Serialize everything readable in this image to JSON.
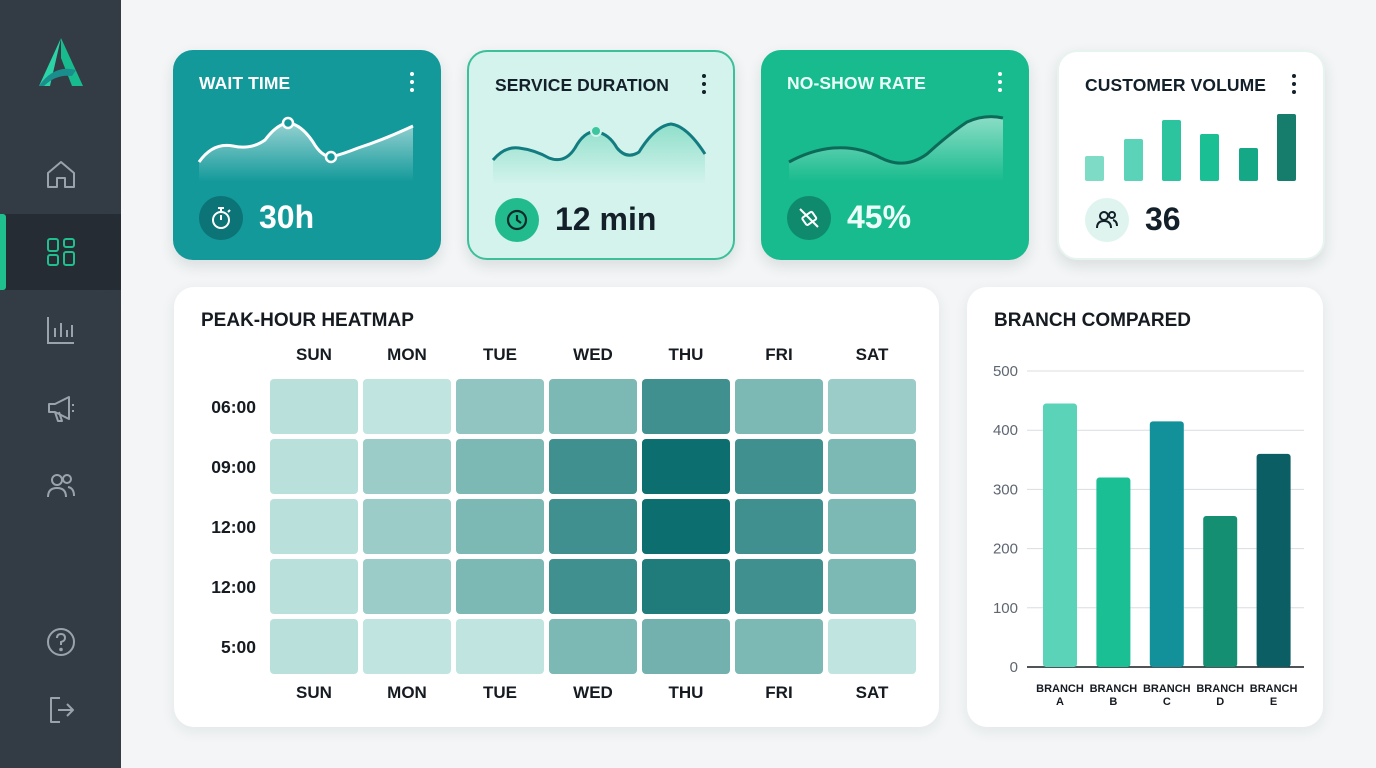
{
  "sidebar": {
    "logo_icon": "brand-a-logo",
    "nav_items": [
      {
        "icon": "home-icon",
        "active": false
      },
      {
        "icon": "dashboard-icon",
        "active": true
      },
      {
        "icon": "bar-chart-icon",
        "active": false
      },
      {
        "icon": "megaphone-icon",
        "active": false
      },
      {
        "icon": "users-icon",
        "active": false
      }
    ],
    "bottom_items": [
      {
        "icon": "help-icon"
      },
      {
        "icon": "logout-icon"
      }
    ]
  },
  "cards": [
    {
      "title": "WAIT TIME",
      "value": "30h",
      "icon": "stopwatch-icon",
      "color": "#13999a"
    },
    {
      "title": "SERVICE DURATION",
      "value": "12 min",
      "icon": "clock-icon",
      "color": "#d3f3ec"
    },
    {
      "title": "NO-SHOW RATE",
      "value": "45%",
      "icon": "no-show-icon",
      "color": "#17bb8d"
    },
    {
      "title": "CUSTOMER VOLUME",
      "value": "36",
      "icon": "users-icon",
      "color": "#ffffff"
    }
  ],
  "heatmap": {
    "title": "PEAK-HOUR HEATMAP",
    "days": [
      "SUN",
      "MON",
      "TUE",
      "WED",
      "THU",
      "FRI",
      "SAT"
    ],
    "rows": [
      "06:00",
      "09:00",
      "12:00",
      "12:00",
      "5:00"
    ],
    "levels": [
      [
        0.15,
        0.12,
        0.35,
        0.45,
        0.75,
        0.45,
        0.3
      ],
      [
        0.15,
        0.3,
        0.45,
        0.75,
        1.0,
        0.75,
        0.45
      ],
      [
        0.15,
        0.3,
        0.45,
        0.75,
        1.0,
        0.75,
        0.45
      ],
      [
        0.15,
        0.3,
        0.45,
        0.75,
        0.9,
        0.75,
        0.45
      ],
      [
        0.15,
        0.12,
        0.12,
        0.45,
        0.5,
        0.45,
        0.12
      ]
    ],
    "color_low": "#d8f4ee",
    "color_high": "#0c6e6e"
  },
  "chart_data": {
    "type": "bar",
    "title": "BRANCH COMPARED",
    "categories": [
      "BRANCH A",
      "BRANCH B",
      "BRANCH C",
      "BRANCH D",
      "BRANCH E"
    ],
    "values": [
      445,
      320,
      415,
      255,
      360
    ],
    "ylim": [
      0,
      500
    ],
    "yticks": [
      0,
      100,
      200,
      300,
      400,
      500
    ],
    "colors": [
      "#5ad3b9",
      "#1abf94",
      "#13919a",
      "#148f72",
      "#0b5e63"
    ],
    "grid": true
  }
}
